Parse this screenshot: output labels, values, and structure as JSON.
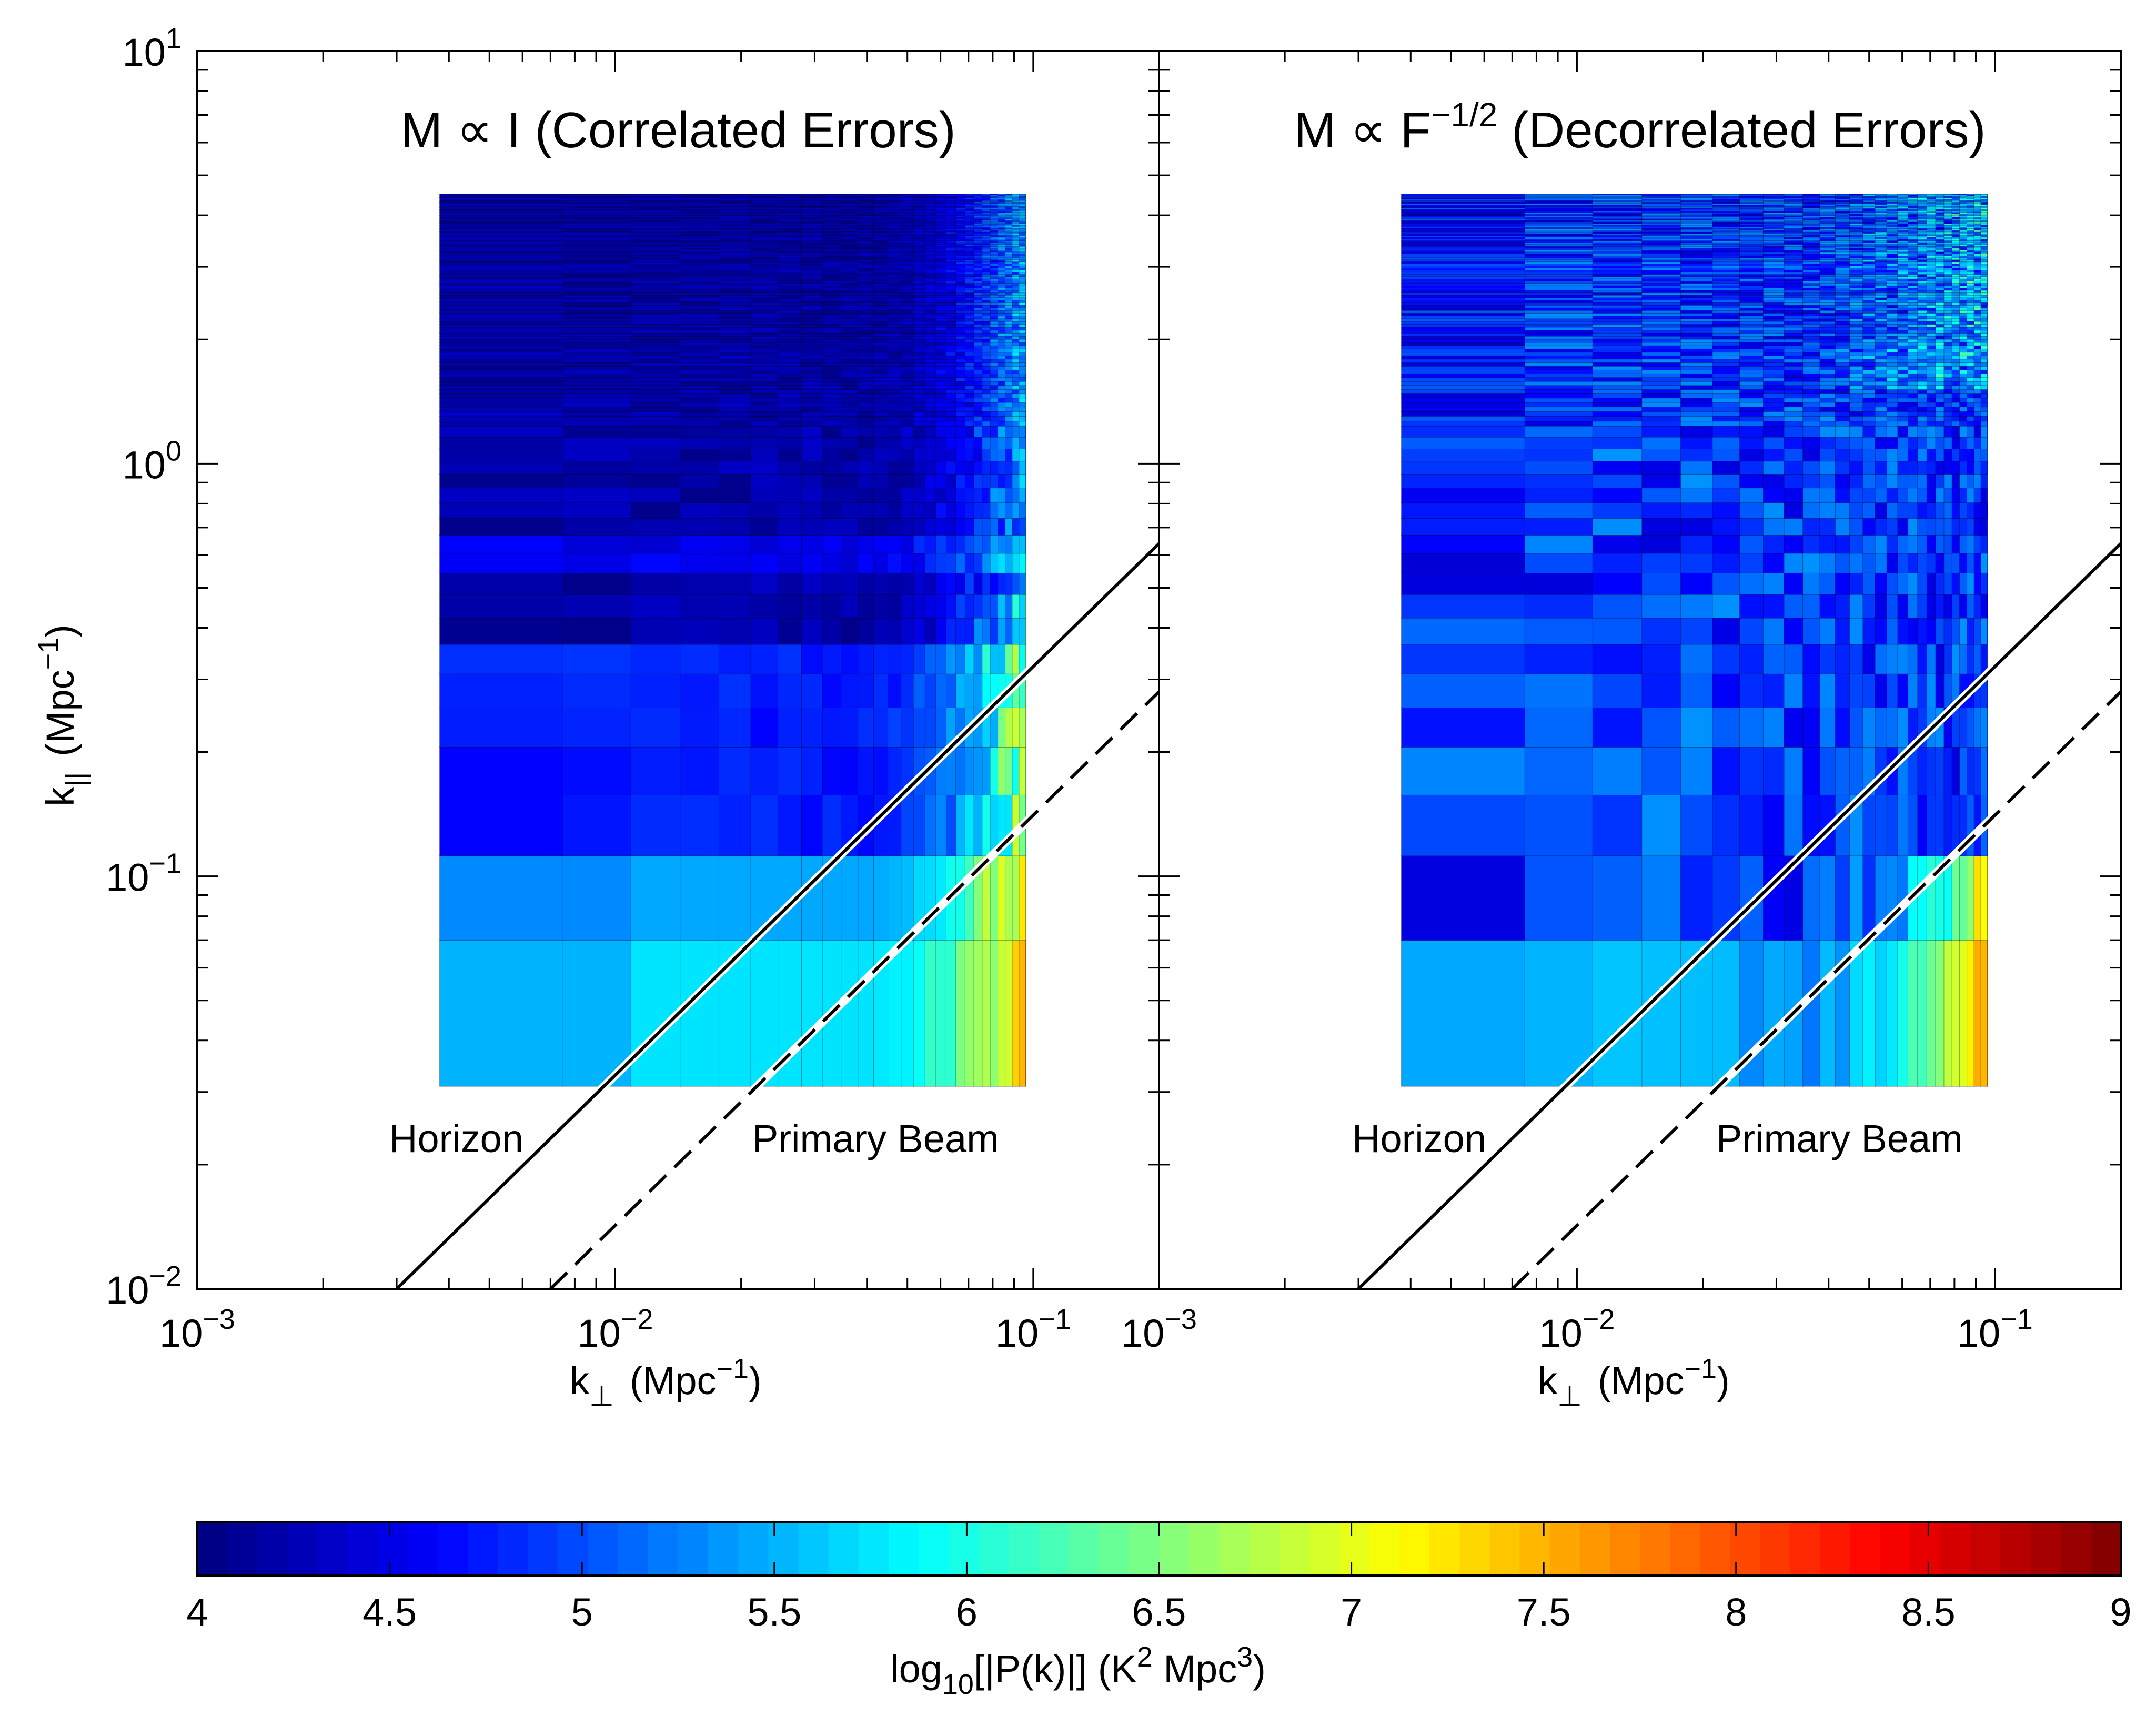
{
  "chart_data": [
    {
      "type": "heatmap",
      "panel": "left",
      "title": {
        "main": "M ∝ I (Correlated Errors)"
      },
      "xlabel": {
        "k": "k",
        "sub": "⊥",
        "unit": "(Mpc",
        "sup": "−1",
        "close": ")"
      },
      "ylabel": {
        "k": "k",
        "sub": "||",
        "unit": "(Mpc",
        "sup": "−1",
        "close": ")"
      },
      "xscale": "log",
      "yscale": "log",
      "xlim": [
        0.001,
        0.2
      ],
      "ylim": [
        0.01,
        10
      ],
      "xticks": [
        {
          "base": "10",
          "exp": "−3"
        },
        {
          "base": "10",
          "exp": "−2"
        },
        {
          "base": "10",
          "exp": "−1"
        }
      ],
      "yticks": [
        {
          "base": "10",
          "exp": "−2"
        },
        {
          "base": "10",
          "exp": "−1"
        },
        {
          "base": "10",
          "exp": "0"
        },
        {
          "base": "10",
          "exp": "1"
        }
      ],
      "lines": [
        {
          "name": "Horizon",
          "style": "solid",
          "x": [
            0.003,
            0.2
          ],
          "y": [
            0.01,
            0.64
          ]
        },
        {
          "name": "Primary Beam",
          "style": "dashed",
          "x": [
            0.007,
            0.2
          ],
          "y": [
            0.01,
            0.28
          ]
        }
      ],
      "annotations": {
        "horizon": "Horizon",
        "beam": "Primary Beam"
      },
      "grid": {
        "kperp_range": [
          0.0038,
          0.096
        ],
        "kpar_range": [
          0.031,
          4.5
        ],
        "mode": "correlated"
      }
    },
    {
      "type": "heatmap",
      "panel": "right",
      "title": {
        "main": "M ∝ F",
        "sup": "−1/2",
        "rest": " (Decorrelated Errors)"
      },
      "xlabel": {
        "k": "k",
        "sub": "⊥",
        "unit": "(Mpc",
        "sup": "−1",
        "close": ")"
      },
      "xscale": "log",
      "yscale": "log",
      "xlim": [
        0.001,
        0.2
      ],
      "ylim": [
        0.01,
        10
      ],
      "xticks": [
        {
          "base": "10",
          "exp": "−3"
        },
        {
          "base": "10",
          "exp": "−2"
        },
        {
          "base": "10",
          "exp": "−1"
        }
      ],
      "lines": [
        {
          "name": "Horizon",
          "style": "solid",
          "x": [
            0.003,
            0.2
          ],
          "y": [
            0.01,
            0.64
          ]
        },
        {
          "name": "Primary Beam",
          "style": "dashed",
          "x": [
            0.007,
            0.2
          ],
          "y": [
            0.01,
            0.28
          ]
        }
      ],
      "annotations": {
        "horizon": "Horizon",
        "beam": "Primary Beam"
      },
      "grid": {
        "kperp_range": [
          0.0038,
          0.096
        ],
        "kpar_range": [
          0.031,
          4.5
        ],
        "mode": "decorrelated"
      }
    }
  ],
  "colorbar": {
    "range": [
      4,
      9
    ],
    "ticks": [
      "4",
      "4.5",
      "5",
      "5.5",
      "6",
      "6.5",
      "7",
      "7.5",
      "8",
      "8.5",
      "9"
    ],
    "label": {
      "pre": "log",
      "sub": "10",
      "mid": "[|P(k)|]  (K",
      "sup1": "2",
      "mid2": " Mpc",
      "sup2": "3",
      "close": ")"
    },
    "colormap": "jet"
  }
}
